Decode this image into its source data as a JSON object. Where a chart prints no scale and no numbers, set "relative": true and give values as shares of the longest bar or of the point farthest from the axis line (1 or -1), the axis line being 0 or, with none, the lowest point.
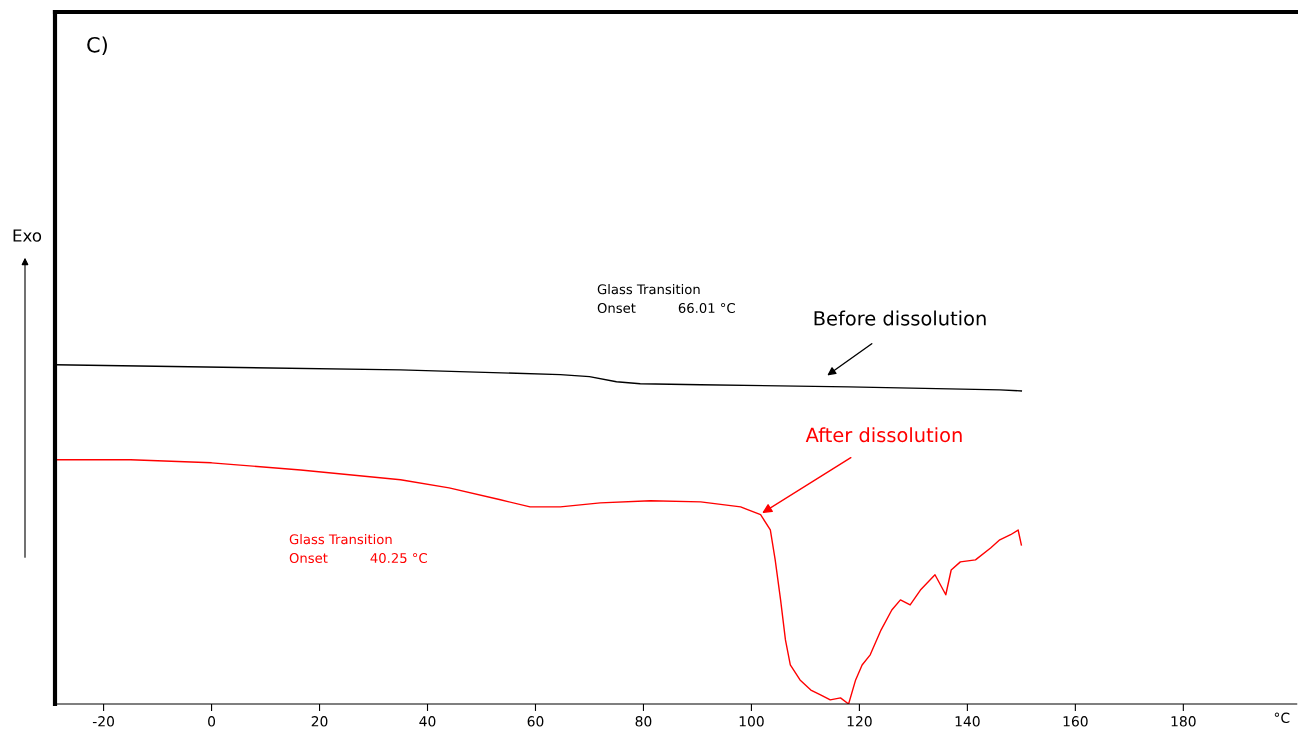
{
  "chart_data": {
    "type": "line",
    "title": "C)",
    "xlabel": "°C",
    "relative": true,
    "xlim": [
      -29,
      201
    ],
    "xticks": [
      -20,
      0,
      20,
      40,
      60,
      80,
      100,
      120,
      140,
      160,
      180
    ],
    "grid": false,
    "legend": false,
    "marker": "none",
    "line_style": "solid",
    "series": [
      {
        "name": null,
        "color": "#000000",
        "x": [
          -29,
          35,
          64.6,
          70,
          75,
          79.4,
          90.6,
          118,
          146,
          150
        ],
        "values": [
          1.0,
          0.985,
          0.971,
          0.965,
          0.95,
          0.944,
          0.941,
          0.935,
          0.926,
          0.923
        ]
      },
      {
        "name": null,
        "color": "#ff0000",
        "x": [
          -29,
          -15,
          0,
          16.5,
          35,
          44,
          53.5,
          59,
          64.6,
          72,
          81.3,
          90.6,
          98,
          101.7,
          103.5,
          104.4,
          105.4,
          106.3,
          107.2,
          109,
          111,
          112.8,
          114.6,
          116.5,
          118,
          119.3,
          120.5,
          122,
          124,
          126,
          127.6,
          129.4,
          131.3,
          134,
          136,
          137,
          138.7,
          141.5,
          144.3,
          146,
          148,
          149.4,
          150
        ],
        "values": [
          0.72,
          0.72,
          0.711,
          0.69,
          0.661,
          0.637,
          0.602,
          0.581,
          0.581,
          0.593,
          0.599,
          0.596,
          0.581,
          0.558,
          0.513,
          0.425,
          0.307,
          0.189,
          0.115,
          0.071,
          0.041,
          0.027,
          0.012,
          0.018,
          0.0,
          0.071,
          0.115,
          0.145,
          0.218,
          0.277,
          0.307,
          0.292,
          0.336,
          0.381,
          0.322,
          0.395,
          0.419,
          0.425,
          0.46,
          0.484,
          0.499,
          0.513,
          0.469
        ]
      }
    ],
    "annotations": [
      "Glass Transition\nOnset          66.01 °C",
      "Glass Transition\nOnset          40.25 °C",
      "Before dissolution",
      {
        "text": "After dissolution",
        "x": 102,
        "y": 0.563
      },
      "Exo"
    ]
  }
}
